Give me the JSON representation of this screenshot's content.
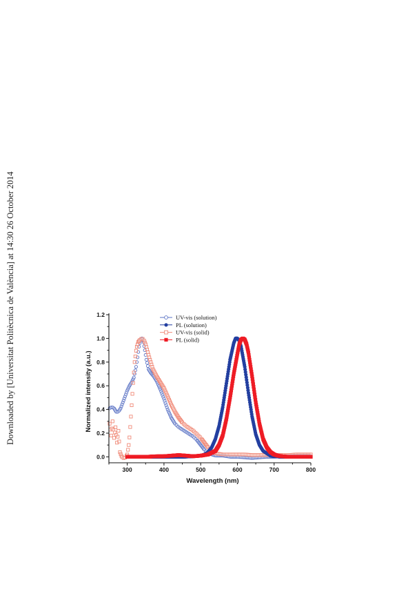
{
  "side_note": "Downloaded by [Universitat Politècnica de València] at 14:30 26 October 2014",
  "chart_data": {
    "type": "line",
    "xlabel": "Wavelength (nm)",
    "ylabel": "Normalized intensity (a.u.)",
    "xlim": [
      250,
      800
    ],
    "ylim": [
      -0.05,
      1.2
    ],
    "xticks": [
      300,
      400,
      500,
      600,
      700,
      800
    ],
    "yticks": [
      0.0,
      0.2,
      0.4,
      0.6,
      0.8,
      1.0,
      1.2
    ],
    "legend_position": "top-center",
    "series": [
      {
        "name": "UV-vis (solution)",
        "color": "#5a72c4",
        "marker": "open-circle",
        "x": [
          252,
          258,
          264,
          270,
          276,
          282,
          288,
          294,
          300,
          306,
          312,
          318,
          324,
          328,
          332,
          336,
          340,
          344,
          348,
          352,
          358,
          364,
          372,
          380,
          390,
          400,
          410,
          420,
          430,
          440,
          450,
          460,
          470,
          480,
          490,
          500,
          510,
          520,
          540,
          560,
          580,
          600,
          620,
          640,
          660,
          680,
          700,
          720,
          740,
          760,
          780,
          800
        ],
        "y": [
          0.41,
          0.42,
          0.41,
          0.38,
          0.38,
          0.41,
          0.46,
          0.51,
          0.56,
          0.6,
          0.63,
          0.67,
          0.76,
          0.84,
          0.93,
          0.99,
          1.0,
          0.97,
          0.9,
          0.82,
          0.74,
          0.71,
          0.68,
          0.64,
          0.57,
          0.49,
          0.4,
          0.33,
          0.28,
          0.25,
          0.23,
          0.21,
          0.19,
          0.17,
          0.14,
          0.1,
          0.06,
          0.03,
          0.01,
          0.01,
          0.0,
          0.0,
          -0.005,
          -0.01,
          -0.005,
          0.0,
          0.0,
          0.005,
          0.005,
          0.01,
          0.01,
          0.01
        ]
      },
      {
        "name": "PL (solution)",
        "color": "#233fa0",
        "marker": "filled-circle",
        "x": [
          300,
          350,
          400,
          450,
          480,
          500,
          510,
          520,
          530,
          540,
          550,
          560,
          570,
          580,
          590,
          595,
          600,
          605,
          610,
          620,
          630,
          640,
          650,
          660,
          670,
          680,
          690,
          700,
          720,
          740,
          760,
          780,
          800
        ],
        "y": [
          0.0,
          0.0,
          0.0,
          0.0,
          0.005,
          0.01,
          0.02,
          0.04,
          0.08,
          0.15,
          0.26,
          0.42,
          0.62,
          0.82,
          0.96,
          1.0,
          1.0,
          0.98,
          0.93,
          0.76,
          0.54,
          0.34,
          0.19,
          0.1,
          0.05,
          0.03,
          0.01,
          0.005,
          0.0,
          0.0,
          0.0,
          0.0,
          0.0
        ]
      },
      {
        "name": "UV-vis (solid)",
        "color": "#f08a78",
        "marker": "open-square",
        "x": [
          252,
          256,
          260,
          264,
          268,
          272,
          276,
          280,
          285,
          290,
          295,
          300,
          305,
          310,
          315,
          320,
          325,
          330,
          335,
          340,
          345,
          350,
          360,
          370,
          380,
          390,
          400,
          410,
          420,
          430,
          440,
          450,
          460,
          470,
          480,
          490,
          500,
          510,
          520,
          530,
          540,
          560,
          580,
          600,
          620,
          640,
          660,
          680,
          700,
          720,
          740,
          760,
          780,
          800
        ],
        "y": [
          0.28,
          0.18,
          0.3,
          0.16,
          0.25,
          0.12,
          0.22,
          0.04,
          0.0,
          -0.01,
          -0.005,
          0.02,
          0.12,
          0.34,
          0.58,
          0.8,
          0.92,
          0.97,
          0.99,
          1.0,
          0.99,
          0.95,
          0.84,
          0.74,
          0.68,
          0.63,
          0.58,
          0.51,
          0.44,
          0.38,
          0.33,
          0.29,
          0.26,
          0.24,
          0.22,
          0.19,
          0.16,
          0.12,
          0.08,
          0.05,
          0.03,
          0.02,
          0.02,
          0.02,
          0.02,
          0.015,
          0.015,
          0.015,
          0.015,
          0.015,
          0.015,
          0.02,
          0.02,
          0.02
        ]
      },
      {
        "name": "PL (solid)",
        "color": "#ee1c25",
        "marker": "filled-square",
        "x": [
          300,
          350,
          380,
          400,
          420,
          440,
          460,
          480,
          500,
          520,
          540,
          550,
          560,
          570,
          580,
          590,
          600,
          605,
          610,
          615,
          620,
          625,
          630,
          640,
          650,
          660,
          670,
          680,
          690,
          700,
          710,
          720,
          740,
          760,
          780,
          800
        ],
        "y": [
          0.0,
          0.0,
          0.005,
          0.005,
          0.01,
          0.015,
          0.01,
          0.005,
          0.01,
          0.02,
          0.05,
          0.1,
          0.18,
          0.32,
          0.5,
          0.7,
          0.87,
          0.95,
          0.99,
          1.0,
          0.99,
          0.95,
          0.88,
          0.68,
          0.46,
          0.28,
          0.15,
          0.08,
          0.04,
          0.02,
          0.01,
          0.005,
          0.0,
          0.0,
          0.0,
          0.0
        ]
      }
    ]
  }
}
